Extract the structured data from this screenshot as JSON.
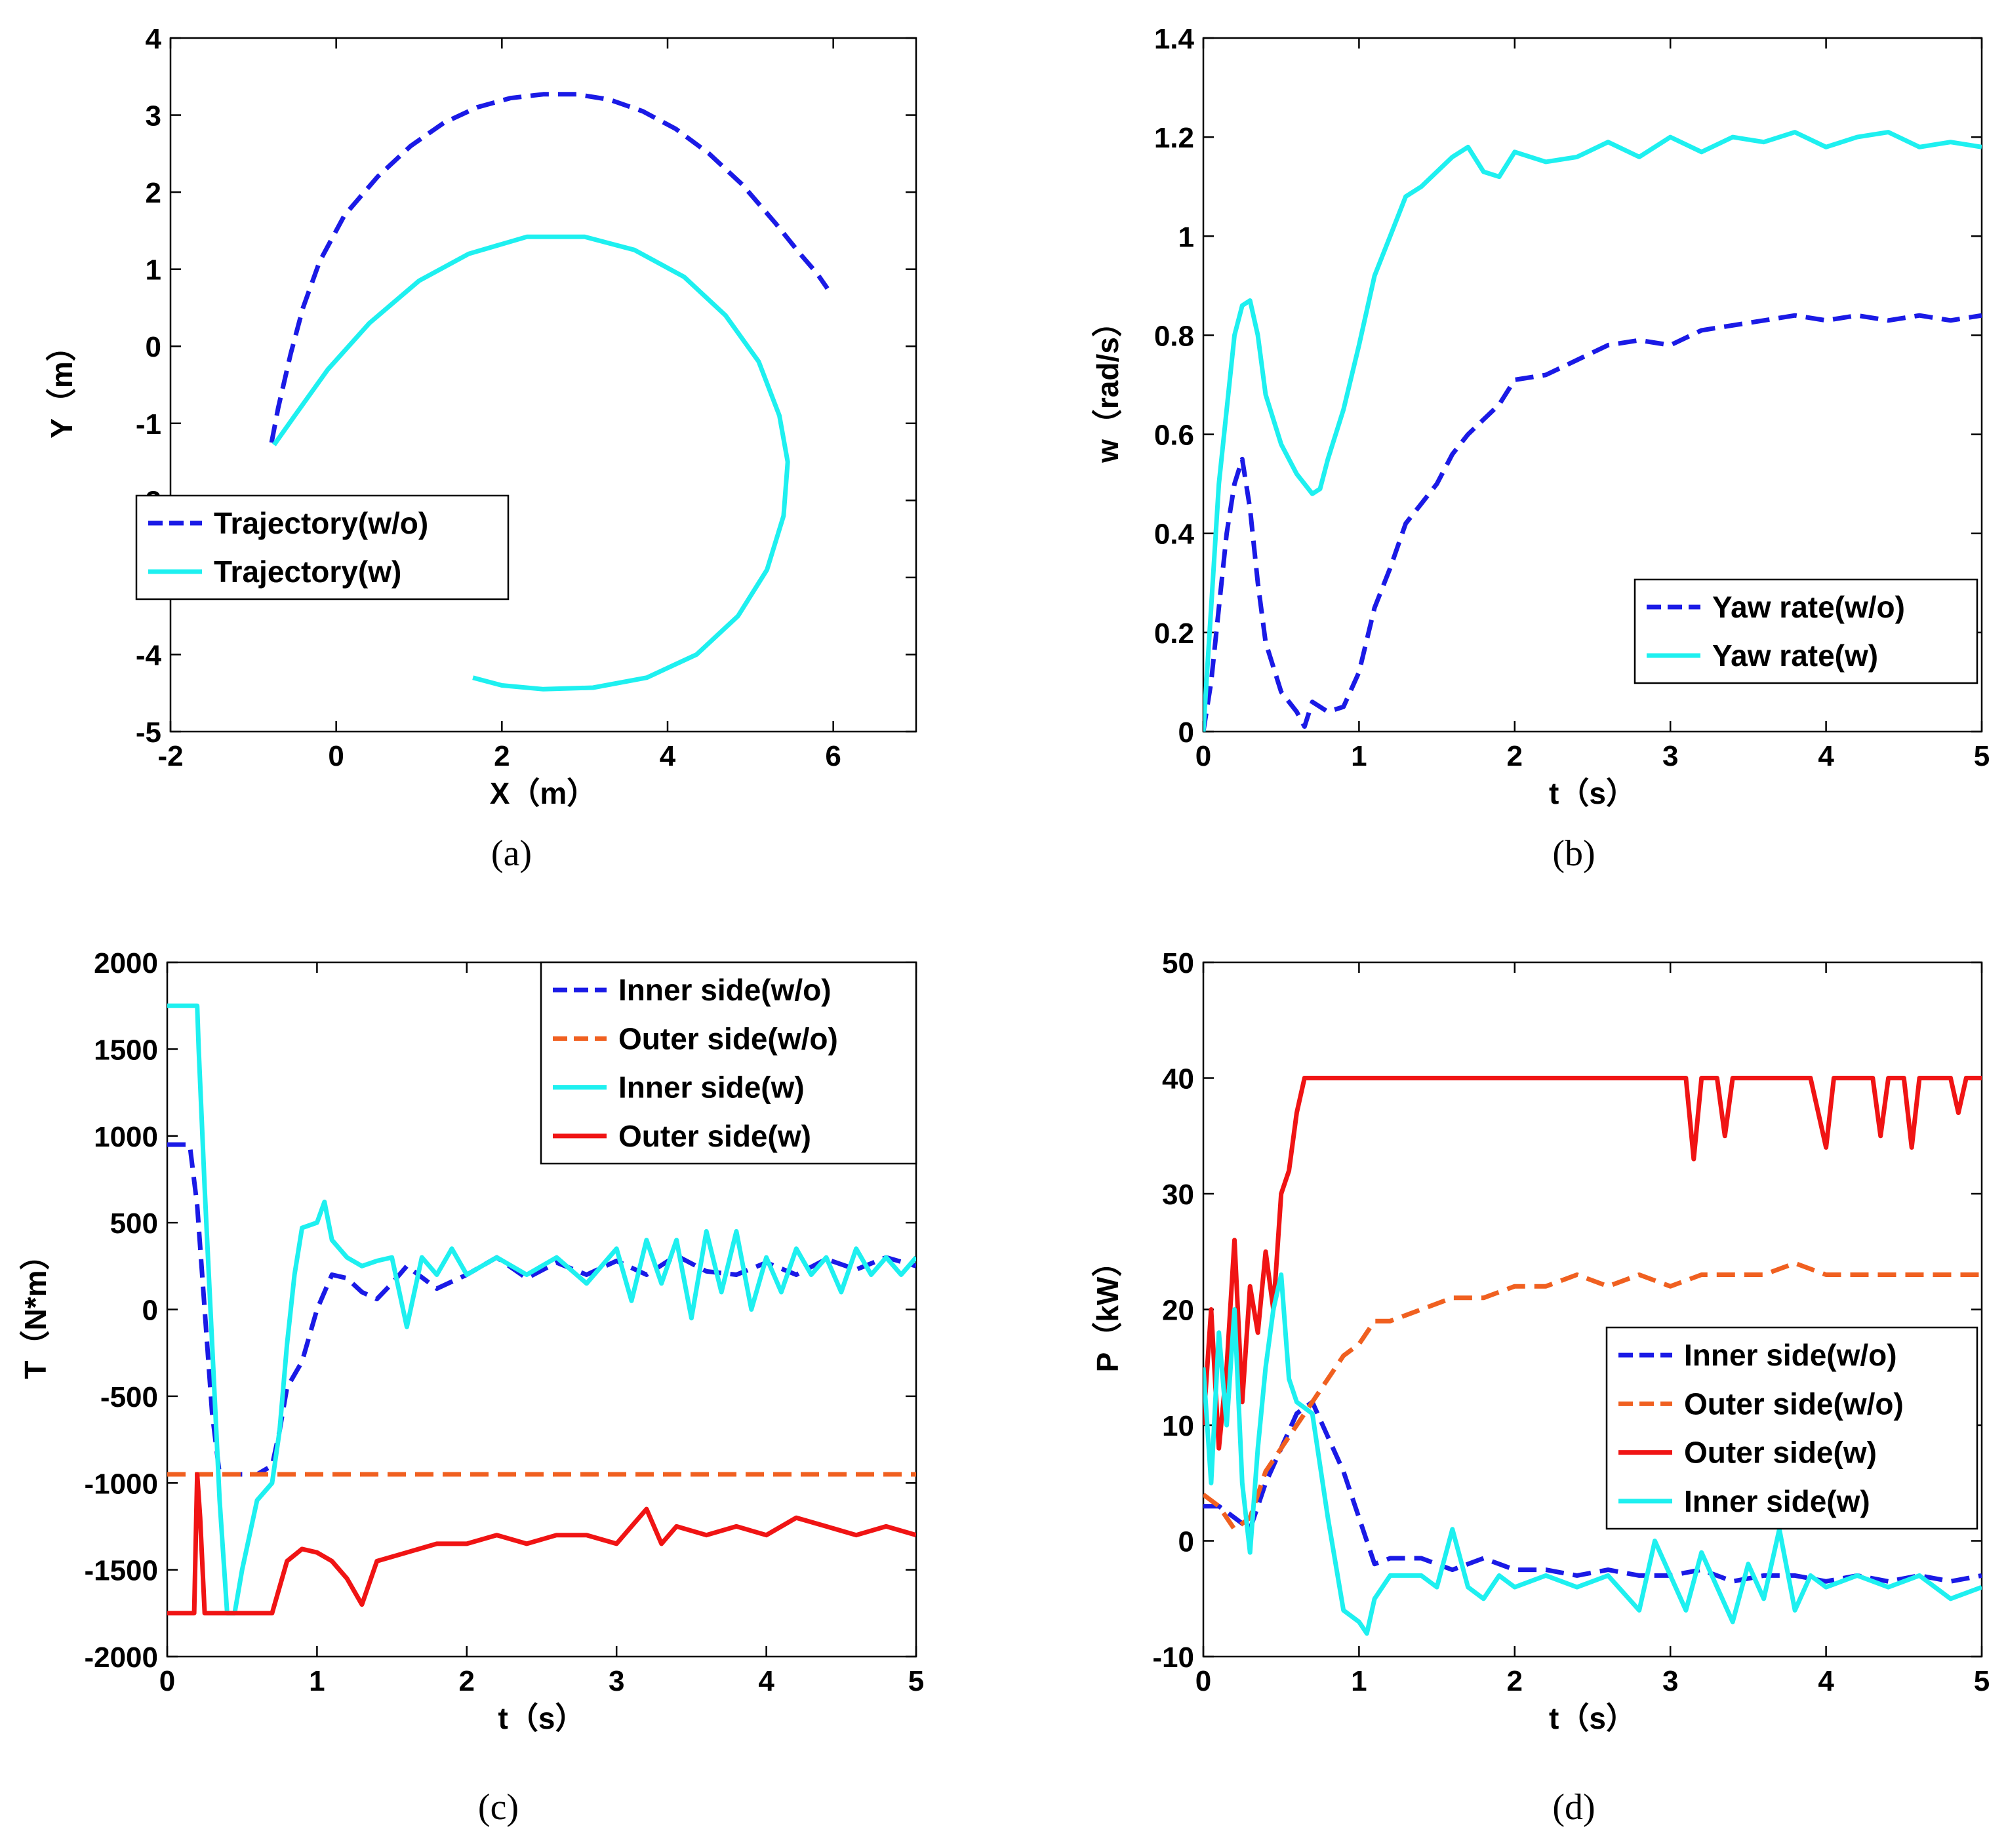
{
  "colors": {
    "blue": "#1a1ae6",
    "cyan": "#1ef0f0",
    "orange": "#f06020",
    "red": "#f01414"
  },
  "chart_data": [
    {
      "id": "a",
      "type": "line",
      "caption": "(a)",
      "xlabel": "X（m）",
      "ylabel": "Y（m）",
      "xlim": [
        -2,
        7
      ],
      "ylim": [
        -5,
        4
      ],
      "xticks": [
        -2,
        0,
        2,
        4,
        6
      ],
      "yticks": [
        -5,
        -4,
        -3,
        -2,
        -1,
        0,
        1,
        2,
        3,
        4
      ],
      "legend_position": "center-left",
      "series": [
        {
          "name": "Trajectory(w/o)",
          "color": "blue",
          "style": "dashed",
          "x": [
            -0.78,
            -0.7,
            -0.55,
            -0.4,
            -0.2,
            0.1,
            0.5,
            0.9,
            1.3,
            1.7,
            2.1,
            2.5,
            2.9,
            3.3,
            3.7,
            4.1,
            4.5,
            4.9,
            5.3,
            5.6,
            5.8,
            5.93
          ],
          "y": [
            -1.25,
            -0.8,
            -0.1,
            0.5,
            1.1,
            1.7,
            2.2,
            2.6,
            2.9,
            3.1,
            3.22,
            3.27,
            3.27,
            3.2,
            3.05,
            2.82,
            2.5,
            2.1,
            1.6,
            1.2,
            0.95,
            0.75
          ]
        },
        {
          "name": "Trajectory(w)",
          "color": "cyan",
          "style": "solid",
          "x": [
            -0.75,
            -0.5,
            -0.1,
            0.4,
            1.0,
            1.6,
            2.3,
            3.0,
            3.6,
            4.2,
            4.7,
            5.1,
            5.35,
            5.45,
            5.4,
            5.2,
            4.85,
            4.35,
            3.75,
            3.1,
            2.5,
            2.0,
            1.65
          ],
          "y": [
            -1.28,
            -0.9,
            -0.3,
            0.3,
            0.85,
            1.2,
            1.42,
            1.42,
            1.25,
            0.9,
            0.4,
            -0.2,
            -0.9,
            -1.5,
            -2.2,
            -2.9,
            -3.5,
            -4.0,
            -4.3,
            -4.43,
            -4.45,
            -4.4,
            -4.3
          ]
        }
      ]
    },
    {
      "id": "b",
      "type": "line",
      "caption": "(b)",
      "xlabel": "t（s）",
      "ylabel": "w（rad/s）",
      "xlim": [
        0,
        5
      ],
      "ylim": [
        0,
        1.4
      ],
      "xticks": [
        0,
        1,
        2,
        3,
        4,
        5
      ],
      "yticks": [
        0,
        0.2,
        0.4,
        0.6,
        0.8,
        1,
        1.2,
        1.4
      ],
      "legend_position": "bottom-right",
      "series": [
        {
          "name": "Yaw rate(w/o)",
          "color": "blue",
          "style": "dashed",
          "x": [
            0,
            0.05,
            0.1,
            0.15,
            0.2,
            0.25,
            0.3,
            0.35,
            0.4,
            0.5,
            0.6,
            0.65,
            0.7,
            0.8,
            0.9,
            1.0,
            1.1,
            1.2,
            1.3,
            1.4,
            1.5,
            1.6,
            1.7,
            1.8,
            1.9,
            2.0,
            2.2,
            2.4,
            2.6,
            2.8,
            3.0,
            3.2,
            3.4,
            3.6,
            3.8,
            4.0,
            4.2,
            4.4,
            4.6,
            4.8,
            5.0
          ],
          "y": [
            0.0,
            0.1,
            0.25,
            0.4,
            0.5,
            0.55,
            0.45,
            0.3,
            0.18,
            0.08,
            0.04,
            0.01,
            0.06,
            0.04,
            0.05,
            0.12,
            0.25,
            0.33,
            0.42,
            0.46,
            0.5,
            0.56,
            0.6,
            0.63,
            0.66,
            0.71,
            0.72,
            0.75,
            0.78,
            0.79,
            0.78,
            0.81,
            0.82,
            0.83,
            0.84,
            0.83,
            0.84,
            0.83,
            0.84,
            0.83,
            0.84
          ]
        },
        {
          "name": "Yaw rate(w)",
          "color": "cyan",
          "style": "solid",
          "x": [
            0,
            0.05,
            0.1,
            0.15,
            0.2,
            0.25,
            0.3,
            0.35,
            0.4,
            0.5,
            0.6,
            0.7,
            0.75,
            0.8,
            0.9,
            1.0,
            1.1,
            1.2,
            1.3,
            1.4,
            1.5,
            1.6,
            1.7,
            1.8,
            1.9,
            2.0,
            2.2,
            2.4,
            2.6,
            2.8,
            3.0,
            3.2,
            3.4,
            3.6,
            3.8,
            4.0,
            4.2,
            4.4,
            4.6,
            4.8,
            5.0
          ],
          "y": [
            0.0,
            0.25,
            0.5,
            0.65,
            0.8,
            0.86,
            0.87,
            0.8,
            0.68,
            0.58,
            0.52,
            0.48,
            0.49,
            0.55,
            0.65,
            0.78,
            0.92,
            1.0,
            1.08,
            1.1,
            1.13,
            1.16,
            1.18,
            1.13,
            1.12,
            1.17,
            1.15,
            1.16,
            1.19,
            1.16,
            1.2,
            1.17,
            1.2,
            1.19,
            1.21,
            1.18,
            1.2,
            1.21,
            1.18,
            1.19,
            1.18
          ]
        }
      ]
    },
    {
      "id": "c",
      "type": "line",
      "caption": "(c)",
      "xlabel": "t（s）",
      "ylabel": "T（N*m）",
      "xlim": [
        0,
        5
      ],
      "ylim": [
        -2000,
        2000
      ],
      "xticks": [
        0,
        1,
        2,
        3,
        4,
        5
      ],
      "yticks": [
        -2000,
        -1500,
        -1000,
        -500,
        0,
        500,
        1000,
        1500,
        2000
      ],
      "legend_position": "top-right",
      "series": [
        {
          "name": "Inner side(w/o)",
          "color": "blue",
          "style": "dashed",
          "x": [
            0,
            0.15,
            0.2,
            0.25,
            0.3,
            0.35,
            0.5,
            0.6,
            0.7,
            0.75,
            0.8,
            0.9,
            1.0,
            1.1,
            1.2,
            1.3,
            1.4,
            1.5,
            1.6,
            1.8,
            2.0,
            2.2,
            2.4,
            2.6,
            2.8,
            3.0,
            3.2,
            3.4,
            3.6,
            3.8,
            4.0,
            4.2,
            4.4,
            4.6,
            4.8,
            5.0
          ],
          "y": [
            950,
            950,
            600,
            0,
            -600,
            -950,
            -950,
            -950,
            -900,
            -700,
            -450,
            -300,
            0,
            200,
            180,
            100,
            60,
            150,
            250,
            120,
            200,
            300,
            180,
            270,
            200,
            280,
            200,
            310,
            220,
            200,
            270,
            200,
            290,
            230,
            300,
            250
          ]
        },
        {
          "name": "Outer side(w/o)",
          "color": "orange",
          "style": "dashed",
          "x": [
            0,
            0.2,
            1,
            2,
            3,
            4,
            5
          ],
          "y": [
            -950,
            -950,
            -950,
            -950,
            -950,
            -950,
            -950
          ]
        },
        {
          "name": "Inner side(w)",
          "color": "cyan",
          "style": "solid",
          "x": [
            0,
            0.2,
            0.21,
            0.25,
            0.3,
            0.35,
            0.4,
            0.45,
            0.5,
            0.55,
            0.6,
            0.7,
            0.75,
            0.8,
            0.85,
            0.9,
            1.0,
            1.05,
            1.1,
            1.2,
            1.3,
            1.4,
            1.5,
            1.6,
            1.7,
            1.8,
            1.9,
            2.0,
            2.2,
            2.4,
            2.6,
            2.8,
            3.0,
            3.1,
            3.2,
            3.3,
            3.4,
            3.5,
            3.6,
            3.7,
            3.8,
            3.9,
            4.0,
            4.1,
            4.2,
            4.3,
            4.4,
            4.5,
            4.6,
            4.7,
            4.8,
            4.9,
            5.0
          ],
          "y": [
            1750,
            1750,
            1500,
            700,
            -200,
            -1100,
            -1750,
            -1750,
            -1500,
            -1300,
            -1100,
            -1000,
            -700,
            -200,
            200,
            470,
            500,
            620,
            400,
            300,
            250,
            280,
            300,
            -100,
            300,
            200,
            350,
            200,
            300,
            200,
            300,
            150,
            350,
            50,
            400,
            150,
            400,
            -50,
            450,
            100,
            450,
            0,
            300,
            100,
            350,
            200,
            300,
            100,
            350,
            200,
            300,
            200,
            300
          ]
        },
        {
          "name": "Outer side(w)",
          "color": "red",
          "style": "solid",
          "x": [
            0,
            0.18,
            0.2,
            0.22,
            0.25,
            0.3,
            0.4,
            0.5,
            0.6,
            0.7,
            0.8,
            0.9,
            1.0,
            1.1,
            1.2,
            1.3,
            1.4,
            1.6,
            1.8,
            2.0,
            2.2,
            2.4,
            2.6,
            2.8,
            3.0,
            3.1,
            3.2,
            3.3,
            3.4,
            3.6,
            3.8,
            4.0,
            4.2,
            4.4,
            4.6,
            4.8,
            5.0
          ],
          "y": [
            -1750,
            -1750,
            -950,
            -1200,
            -1750,
            -1750,
            -1750,
            -1750,
            -1750,
            -1750,
            -1450,
            -1380,
            -1400,
            -1450,
            -1550,
            -1700,
            -1450,
            -1400,
            -1350,
            -1350,
            -1300,
            -1350,
            -1300,
            -1300,
            -1350,
            -1250,
            -1150,
            -1350,
            -1250,
            -1300,
            -1250,
            -1300,
            -1200,
            -1250,
            -1300,
            -1250,
            -1300
          ]
        }
      ]
    },
    {
      "id": "d",
      "type": "line",
      "caption": "(d)",
      "xlabel": "t（s）",
      "ylabel": "P（kW）",
      "xlim": [
        0,
        5
      ],
      "ylim": [
        -10,
        50
      ],
      "xticks": [
        0,
        1,
        2,
        3,
        4,
        5
      ],
      "yticks": [
        -10,
        0,
        10,
        20,
        30,
        40,
        50
      ],
      "legend_position": "bottom-right",
      "series": [
        {
          "name": "Inner side(w/o)",
          "color": "blue",
          "style": "dashed",
          "x": [
            0,
            0.1,
            0.2,
            0.3,
            0.4,
            0.5,
            0.6,
            0.7,
            0.8,
            0.9,
            1.0,
            1.1,
            1.2,
            1.4,
            1.6,
            1.8,
            2.0,
            2.2,
            2.4,
            2.6,
            2.8,
            3.0,
            3.2,
            3.4,
            3.6,
            3.8,
            4.0,
            4.2,
            4.4,
            4.6,
            4.8,
            5.0
          ],
          "y": [
            3,
            3,
            2,
            1,
            5,
            8,
            11,
            12,
            9,
            6,
            2,
            -2,
            -1.5,
            -1.5,
            -2.5,
            -1.5,
            -2.5,
            -2.5,
            -3,
            -2.5,
            -3,
            -3,
            -2.5,
            -3.5,
            -3,
            -3,
            -3.5,
            -3,
            -3.5,
            -3,
            -3.5,
            -3
          ]
        },
        {
          "name": "Outer side(w/o)",
          "color": "orange",
          "style": "dashed",
          "x": [
            0,
            0.1,
            0.2,
            0.3,
            0.4,
            0.5,
            0.6,
            0.7,
            0.8,
            0.9,
            1.0,
            1.1,
            1.2,
            1.4,
            1.6,
            1.8,
            2.0,
            2.2,
            2.4,
            2.6,
            2.8,
            3.0,
            3.2,
            3.4,
            3.6,
            3.8,
            4.0,
            4.2,
            4.4,
            4.6,
            4.8,
            5.0
          ],
          "y": [
            4,
            3,
            1,
            2,
            6,
            8,
            10,
            12,
            14,
            16,
            17,
            19,
            19,
            20,
            21,
            21,
            22,
            22,
            23,
            22,
            23,
            22,
            23,
            23,
            23,
            24,
            23,
            23,
            23,
            23,
            23,
            23
          ]
        },
        {
          "name": "Outer side(w)",
          "color": "red",
          "style": "solid",
          "x": [
            0,
            0.05,
            0.1,
            0.15,
            0.2,
            0.25,
            0.3,
            0.35,
            0.4,
            0.45,
            0.5,
            0.55,
            0.6,
            0.65,
            0.7,
            0.8,
            1.0,
            2.0,
            3.0,
            3.1,
            3.15,
            3.2,
            3.3,
            3.35,
            3.4,
            3.6,
            3.9,
            4.0,
            4.05,
            4.1,
            4.3,
            4.35,
            4.4,
            4.5,
            4.55,
            4.6,
            4.8,
            4.85,
            4.9,
            5.0
          ],
          "y": [
            10,
            20,
            8,
            15,
            26,
            12,
            22,
            18,
            25,
            20,
            30,
            32,
            37,
            40,
            40,
            40,
            40,
            40,
            40,
            40,
            33,
            40,
            40,
            35,
            40,
            40,
            40,
            34,
            40,
            40,
            40,
            35,
            40,
            40,
            34,
            40,
            40,
            37,
            40,
            40
          ]
        },
        {
          "name": "Inner side(w)",
          "color": "cyan",
          "style": "solid",
          "x": [
            0,
            0.05,
            0.1,
            0.15,
            0.2,
            0.25,
            0.3,
            0.35,
            0.4,
            0.45,
            0.5,
            0.55,
            0.6,
            0.7,
            0.8,
            0.9,
            1.0,
            1.05,
            1.1,
            1.2,
            1.4,
            1.5,
            1.6,
            1.7,
            1.8,
            1.9,
            2.0,
            2.2,
            2.4,
            2.6,
            2.8,
            2.9,
            3.0,
            3.1,
            3.2,
            3.3,
            3.4,
            3.5,
            3.6,
            3.7,
            3.8,
            3.9,
            4.0,
            4.2,
            4.4,
            4.6,
            4.8,
            5.0
          ],
          "y": [
            15,
            5,
            18,
            10,
            20,
            5,
            -1,
            8,
            15,
            20,
            23,
            14,
            12,
            11,
            2,
            -6,
            -7,
            -8,
            -5,
            -3,
            -3,
            -4,
            1,
            -4,
            -5,
            -3,
            -4,
            -3,
            -4,
            -3,
            -6,
            0,
            -3,
            -6,
            -1,
            -4,
            -7,
            -2,
            -5,
            1,
            -6,
            -3,
            -4,
            -3,
            -4,
            -3,
            -5,
            -4
          ]
        }
      ]
    }
  ]
}
